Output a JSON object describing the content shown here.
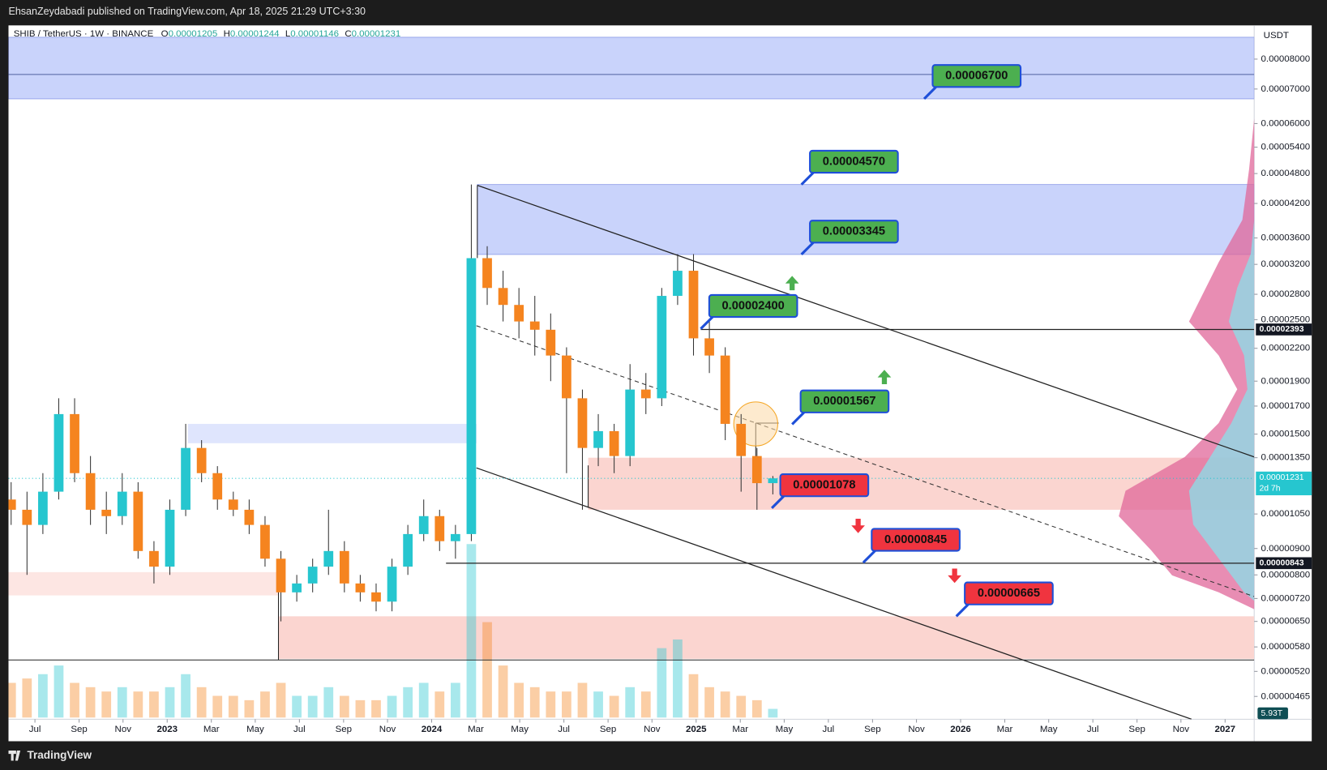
{
  "header": {
    "publisher": "EhsanZeydabadi published on TradingView.com, Apr 18, 2025 21:29 UTC+3:30"
  },
  "footer": {
    "brand": "TradingView"
  },
  "chart_data": {
    "type": "candlestick",
    "title": "SHIB / TetherUS · 1W · BINANCE",
    "ohlc_letters": [
      "O",
      "H",
      "L",
      "C"
    ],
    "y_axis_label": "USDT",
    "log_scale": true,
    "grid": false,
    "up_color": "#26c6cf",
    "down_color": "#f5841f",
    "xlim": [
      2022.4,
      2027.11
    ],
    "xticks": [
      {
        "value": 2022.5,
        "label": "Jul"
      },
      {
        "value": 2022.667,
        "label": "Sep"
      },
      {
        "value": 2022.833,
        "label": "Nov"
      },
      {
        "value": 2023.0,
        "label": "2023"
      },
      {
        "value": 2023.167,
        "label": "Mar"
      },
      {
        "value": 2023.333,
        "label": "May"
      },
      {
        "value": 2023.5,
        "label": "Jul"
      },
      {
        "value": 2023.667,
        "label": "Sep"
      },
      {
        "value": 2023.833,
        "label": "Nov"
      },
      {
        "value": 2024.0,
        "label": "2024"
      },
      {
        "value": 2024.167,
        "label": "Mar"
      },
      {
        "value": 2024.333,
        "label": "May"
      },
      {
        "value": 2024.5,
        "label": "Jul"
      },
      {
        "value": 2024.667,
        "label": "Sep"
      },
      {
        "value": 2024.833,
        "label": "Nov"
      },
      {
        "value": 2025.0,
        "label": "2025"
      },
      {
        "value": 2025.167,
        "label": "Mar"
      },
      {
        "value": 2025.333,
        "label": "May"
      },
      {
        "value": 2025.5,
        "label": "Jul"
      },
      {
        "value": 2025.667,
        "label": "Sep"
      },
      {
        "value": 2025.833,
        "label": "Nov"
      },
      {
        "value": 2026.0,
        "label": "2026"
      },
      {
        "value": 2026.167,
        "label": "Mar"
      },
      {
        "value": 2026.333,
        "label": "May"
      },
      {
        "value": 2026.5,
        "label": "Jul"
      },
      {
        "value": 2026.667,
        "label": "Sep"
      },
      {
        "value": 2026.833,
        "label": "Nov"
      },
      {
        "value": 2027.0,
        "label": "2027"
      }
    ],
    "ylim": [
      4.2e-06,
      9.3e-05
    ],
    "yticks": [
      {
        "value": 8e-05,
        "label": "0.00008000"
      },
      {
        "value": 7e-05,
        "label": "0.00007000"
      },
      {
        "value": 6e-05,
        "label": "0.00006000"
      },
      {
        "value": 5.4e-05,
        "label": "0.00005400"
      },
      {
        "value": 4.8e-05,
        "label": "0.00004800"
      },
      {
        "value": 4.2e-05,
        "label": "0.00004200"
      },
      {
        "value": 3.6e-05,
        "label": "0.00003600"
      },
      {
        "value": 3.2e-05,
        "label": "0.00003200"
      },
      {
        "value": 2.8e-05,
        "label": "0.00002800"
      },
      {
        "value": 2.5e-05,
        "label": "0.00002500"
      },
      {
        "value": 2.2e-05,
        "label": "0.00002200"
      },
      {
        "value": 1.9e-05,
        "label": "0.00001900"
      },
      {
        "value": 1.7e-05,
        "label": "0.00001700"
      },
      {
        "value": 1.5e-05,
        "label": "0.00001500"
      },
      {
        "value": 1.35e-05,
        "label": "0.00001350"
      },
      {
        "value": 1.05e-05,
        "label": "0.00001050"
      },
      {
        "value": 9e-06,
        "label": "0.00000900"
      },
      {
        "value": 8e-06,
        "label": "0.00000800"
      },
      {
        "value": 7.2e-06,
        "label": "0.00000720"
      },
      {
        "value": 6.5e-06,
        "label": "0.00000650"
      },
      {
        "value": 5.8e-06,
        "label": "0.00000580"
      },
      {
        "value": 5.2e-06,
        "label": "0.00000520"
      },
      {
        "value": 4.65e-06,
        "label": "0.00000465"
      }
    ],
    "x": [
      2022.41,
      2022.47,
      2022.53,
      2022.59,
      2022.65,
      2022.71,
      2022.77,
      2022.83,
      2022.89,
      2022.95,
      2023.01,
      2023.07,
      2023.13,
      2023.19,
      2023.25,
      2023.31,
      2023.37,
      2023.43,
      2023.49,
      2023.55,
      2023.61,
      2023.67,
      2023.73,
      2023.79,
      2023.85,
      2023.91,
      2023.97,
      2024.03,
      2024.09,
      2024.15,
      2024.21,
      2024.27,
      2024.33,
      2024.39,
      2024.45,
      2024.51,
      2024.57,
      2024.63,
      2024.69,
      2024.75,
      2024.81,
      2024.87,
      2024.93,
      2024.99,
      2025.05,
      2025.11,
      2025.17,
      2025.23,
      2025.29
    ],
    "open": [
      1.12e-05,
      1.07e-05,
      1e-05,
      1.16e-05,
      1.64e-05,
      1.26e-05,
      1.07e-05,
      1.04e-05,
      1.16e-05,
      8.9e-06,
      8.3e-06,
      1.07e-05,
      1.41e-05,
      1.26e-05,
      1.12e-05,
      1.07e-05,
      1e-05,
      8.6e-06,
      7.4e-06,
      7.7e-06,
      8.3e-06,
      8.9e-06,
      7.7e-06,
      7.4e-06,
      7.1e-06,
      8.3e-06,
      9.6e-06,
      1.04e-05,
      9.3e-06,
      9.6e-06,
      3.29e-05,
      2.88e-05,
      2.67e-05,
      2.48e-05,
      2.39e-05,
      2.13e-05,
      1.76e-05,
      1.41e-05,
      1.52e-05,
      1.36e-05,
      1.83e-05,
      1.76e-05,
      2.78e-05,
      3.11e-05,
      2.3e-05,
      2.13e-05,
      1.57e-05,
      1.36e-05,
      1.205e-05
    ],
    "high": [
      1.21e-05,
      1.16e-05,
      1.26e-05,
      1.76e-05,
      1.76e-05,
      1.36e-05,
      1.16e-05,
      1.26e-05,
      1.21e-05,
      9.3e-06,
      1.12e-05,
      1.57e-05,
      1.46e-05,
      1.3e-05,
      1.16e-05,
      1.12e-05,
      1.04e-05,
      8.9e-06,
      8e-06,
      8.6e-06,
      1.07e-05,
      9.3e-06,
      8e-06,
      7.7e-06,
      8.6e-06,
      1e-05,
      1.12e-05,
      1.07e-05,
      1e-05,
      4.57e-05,
      3.47e-05,
      3.11e-05,
      2.88e-05,
      2.78e-05,
      2.57e-05,
      2.21e-05,
      1.83e-05,
      1.64e-05,
      1.57e-05,
      2.05e-05,
      1.97e-05,
      2.88e-05,
      3.35e-05,
      3.35e-05,
      2.48e-05,
      2.21e-05,
      1.64e-05,
      1.41e-05,
      1.244e-05
    ],
    "low": [
      1e-05,
      8e-06,
      9.6e-06,
      1.12e-05,
      1.21e-05,
      1e-05,
      9.6e-06,
      1e-05,
      8.6e-06,
      7.7e-06,
      8e-06,
      1.04e-05,
      1.21e-05,
      1.07e-05,
      1.04e-05,
      9.6e-06,
      8.3e-06,
      6.5e-06,
      7.1e-06,
      7.4e-06,
      8e-06,
      7.4e-06,
      7.1e-06,
      6.8e-06,
      6.8e-06,
      8e-06,
      9.3e-06,
      8.9e-06,
      8.6e-06,
      9.3e-06,
      2.67e-05,
      2.48e-05,
      2.3e-05,
      2.13e-05,
      1.9e-05,
      1.26e-05,
      1.07e-05,
      1.3e-05,
      1.26e-05,
      1.3e-05,
      1.64e-05,
      1.7e-05,
      2.67e-05,
      2.13e-05,
      1.97e-05,
      1.46e-05,
      1.16e-05,
      1.07e-05,
      1.146e-05
    ],
    "close": [
      1.07e-05,
      1e-05,
      1.16e-05,
      1.64e-05,
      1.26e-05,
      1.07e-05,
      1.04e-05,
      1.16e-05,
      8.9e-06,
      8.3e-06,
      1.07e-05,
      1.41e-05,
      1.26e-05,
      1.12e-05,
      1.07e-05,
      1e-05,
      8.6e-06,
      7.4e-06,
      7.7e-06,
      8.3e-06,
      8.9e-06,
      7.7e-06,
      7.4e-06,
      7.1e-06,
      8.3e-06,
      9.6e-06,
      1.04e-05,
      9.3e-06,
      9.6e-06,
      3.29e-05,
      2.88e-05,
      2.67e-05,
      2.48e-05,
      2.39e-05,
      2.13e-05,
      1.76e-05,
      1.41e-05,
      1.52e-05,
      1.36e-05,
      1.83e-05,
      1.76e-05,
      2.78e-05,
      3.11e-05,
      2.3e-05,
      2.13e-05,
      1.57e-05,
      1.36e-05,
      1.205e-05,
      1.231e-05
    ],
    "countdown": "2d 7h",
    "volume": {
      "values": [
        23720000000000.0,
        26690000000000.0,
        29650000000000.0,
        35580000000000.0,
        23720000000000.0,
        20760000000000.0,
        17790000000000.0,
        20760000000000.0,
        17790000000000.0,
        17790000000000.0,
        20760000000000.0,
        29650000000000.0,
        20760000000000.0,
        14830000000000.0,
        14830000000000.0,
        11860000000000.0,
        17790000000000.0,
        23720000000000.0,
        14830000000000.0,
        14830000000000.0,
        20760000000000.0,
        14830000000000.0,
        11860000000000.0,
        11860000000000.0,
        14830000000000.0,
        20760000000000.0,
        23720000000000.0,
        17790000000000.0,
        23720000000000.0,
        118600000000000.0,
        65230000000000.0,
        35580000000000.0,
        23720000000000.0,
        20760000000000.0,
        17790000000000.0,
        17790000000000.0,
        23720000000000.0,
        17790000000000.0,
        14830000000000.0,
        20760000000000.0,
        17790000000000.0,
        47440000000000.0,
        53370000000000.0,
        29650000000000.0,
        20760000000000.0,
        17790000000000.0,
        14830000000000.0,
        11860000000000.0,
        5930000000000.0
      ],
      "value_labels": [
        null,
        null,
        null,
        null,
        null,
        null,
        null,
        null,
        null,
        null,
        null,
        null,
        null,
        null,
        null,
        null,
        null,
        null,
        null,
        null,
        null,
        null,
        null,
        null,
        null,
        null,
        null,
        null,
        null,
        null,
        null,
        null,
        null,
        null,
        null,
        null,
        null,
        null,
        null,
        null,
        null,
        null,
        null,
        null,
        null,
        null,
        null,
        null,
        "5.93T"
      ]
    },
    "levels": [
      2.393e-05,
      8.43e-06
    ],
    "zones": [
      {
        "from": 6.7e-05,
        "to": 8.82e-05,
        "color": "#c9d3fb"
      },
      {
        "from": 3.345e-05,
        "to": 4.57e-05,
        "color": "#c9d3fb"
      },
      {
        "from": 1.44e-05,
        "to": 1.57e-05,
        "color": "#dfe5fd"
      },
      {
        "from": 1.07e-05,
        "to": 1.35e-05,
        "color": "#fbd5d0"
      },
      {
        "from": 7.3e-06,
        "to": 8.1e-06,
        "color": "#fde6e3"
      },
      {
        "from": 5.5e-06,
        "to": 6.65e-06,
        "color": "#fbd5d0"
      }
    ],
    "annotations": [
      {
        "value": 6.7e-05,
        "label": "0.00006700",
        "color": "#4caf50"
      },
      {
        "value": 4.57e-05,
        "label": "0.00004570",
        "color": "#4caf50"
      },
      {
        "value": 3.345e-05,
        "label": "0.00003345",
        "color": "#4caf50"
      },
      {
        "value": 2.4e-05,
        "label": "0.00002400",
        "color": "#4caf50"
      },
      {
        "value": 1.567e-05,
        "label": "0.00001567",
        "color": "#4caf50"
      },
      {
        "value": 1.078e-05,
        "label": "0.00001078",
        "color": "#f0343f"
      },
      {
        "value": 8.45e-06,
        "label": "0.00000845",
        "color": "#f0343f"
      },
      {
        "value": 6.65e-06,
        "label": "0.00000665",
        "color": "#f0343f"
      }
    ]
  }
}
